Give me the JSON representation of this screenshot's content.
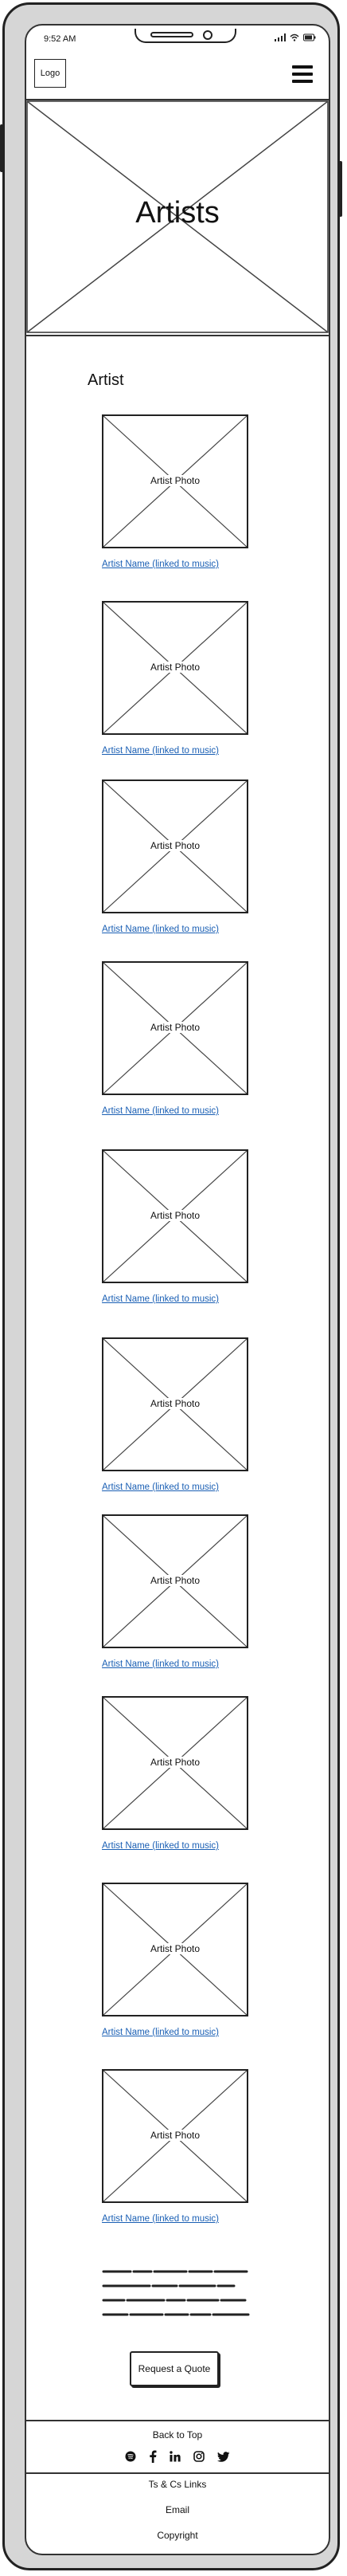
{
  "status_bar": {
    "time": "9:52 AM"
  },
  "header": {
    "logo": "Logo",
    "menu_icon": "hamburger-menu-icon"
  },
  "hero": {
    "title": "Artists"
  },
  "section": {
    "title": "Artist"
  },
  "artists": [
    {
      "photo_label": "Artist Photo",
      "name": "Artist Name (linked to music)"
    },
    {
      "photo_label": "Artist Photo",
      "name": "Artist Name (linked to music)"
    },
    {
      "photo_label": "Artist Photo",
      "name": "Artist Name (linked to music)"
    },
    {
      "photo_label": "Artist Photo",
      "name": "Artist Name (linked to music)"
    },
    {
      "photo_label": "Artist Photo",
      "name": "Artist Name (linked to music)"
    },
    {
      "photo_label": "Artist Photo",
      "name": "Artist Name (linked to music)"
    },
    {
      "photo_label": "Artist Photo",
      "name": "Artist Name (linked to music)"
    },
    {
      "photo_label": "Artist Photo",
      "name": "Artist Name (linked to music)"
    },
    {
      "photo_label": "Artist Photo",
      "name": "Artist Name (linked to music)"
    },
    {
      "photo_label": "Artist Photo",
      "name": "Artist Name (linked to music)"
    }
  ],
  "cta": {
    "label": "Request a Quote"
  },
  "footer": {
    "back_to_top": "Back to Top",
    "social_icons": [
      "spotify-icon",
      "facebook-icon",
      "linkedin-icon",
      "instagram-icon",
      "twitter-icon"
    ],
    "links": [
      "Ts & Cs Links",
      "Email",
      "Copyright"
    ]
  },
  "colors": {
    "link": "#1a5fb4",
    "frame": "#d6d6d6",
    "stroke": "#222222"
  }
}
